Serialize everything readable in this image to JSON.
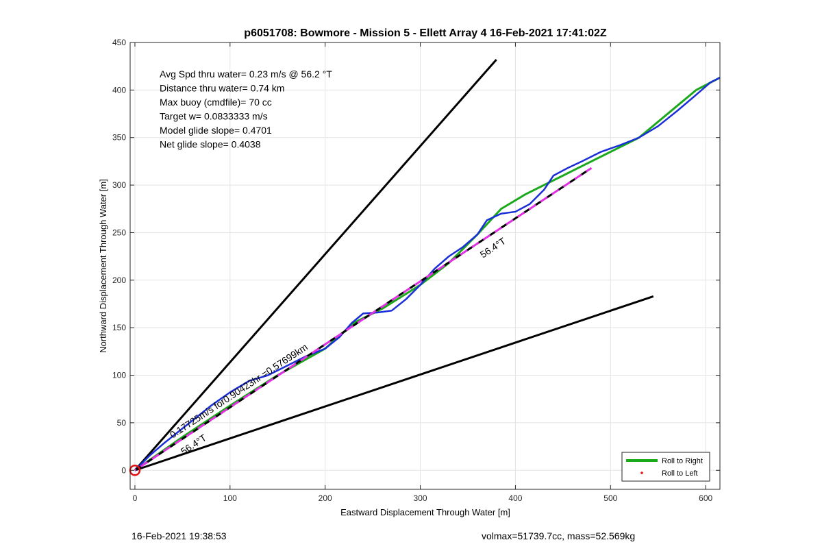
{
  "chart_data": {
    "type": "line",
    "title": "p6051708: Bowmore - Mission 5 - Ellett Array 4 16-Feb-2021 17:41:02Z",
    "xlabel": "Eastward Displacement Through Water [m]",
    "ylabel": "Northward Displacement Through Water [m]",
    "xlim": [
      -5,
      615
    ],
    "ylim": [
      -20,
      450
    ],
    "xticks": [
      "0",
      "100",
      "200",
      "300",
      "400",
      "500",
      "600"
    ],
    "yticks": [
      "0",
      "50",
      "100",
      "150",
      "200",
      "250",
      "300",
      "350",
      "400",
      "450"
    ],
    "grid": true,
    "legend_position": "bottom-right",
    "info_lines": [
      "Avg Spd thru water=  0.23 m/s @  56.2 °T",
      "Distance thru water=  0.74 km",
      "Max buoy (cmdfile)= 70 cc",
      "Target w= 0.0833333 m/s",
      "Model glide slope= 0.4701",
      "Net glide slope= 0.4038"
    ],
    "annotations": {
      "current_label": "0.17725m/s for0.90423hr =0.57699km",
      "heading_label_1": "56.4°T",
      "heading_label_2": "56.4°T"
    },
    "legend": [
      {
        "label": "Roll to Right",
        "color": "#1ca81c"
      },
      {
        "label": "Roll to Left",
        "color": "#e01010"
      }
    ],
    "cone_lines": [
      {
        "x": [
          0,
          380
        ],
        "y": [
          0,
          432
        ]
      },
      {
        "x": [
          0,
          545
        ],
        "y": [
          0,
          183
        ]
      }
    ],
    "heading_line": {
      "x": [
        0,
        480
      ],
      "y": [
        0,
        318
      ]
    },
    "series": [
      {
        "name": "Roll to Right",
        "color": "#1ca81c",
        "x": [
          0,
          20,
          50,
          100,
          150,
          200,
          230,
          260,
          300,
          330,
          360,
          385,
          410,
          440,
          470,
          500,
          530,
          560,
          590,
          615
        ],
        "y": [
          0,
          14,
          35,
          68,
          100,
          128,
          155,
          170,
          195,
          218,
          248,
          275,
          290,
          305,
          320,
          335,
          350,
          375,
          400,
          413
        ]
      },
      {
        "color": "#1a2ed8",
        "x": [
          0,
          15,
          30,
          45,
          60,
          80,
          100,
          120,
          140,
          160,
          180,
          200,
          215,
          228,
          240,
          255,
          270,
          285,
          300,
          315,
          330,
          345,
          360,
          370,
          385,
          400,
          415,
          430,
          440,
          455,
          470,
          490,
          510,
          530,
          550,
          570,
          590,
          605,
          615
        ],
        "y": [
          0,
          15,
          28,
          40,
          52,
          68,
          82,
          94,
          100,
          110,
          120,
          128,
          140,
          155,
          165,
          166,
          168,
          180,
          195,
          212,
          225,
          235,
          248,
          263,
          270,
          272,
          280,
          295,
          310,
          318,
          325,
          335,
          342,
          350,
          362,
          378,
          395,
          408,
          413
        ]
      },
      {
        "color": "#e030e0",
        "x": [
          0,
          480
        ],
        "y": [
          0,
          318
        ]
      }
    ],
    "start_marker": {
      "x": 0,
      "y": 0,
      "color": "#e01010"
    }
  },
  "footer": {
    "timestamp": "16-Feb-2021 19:38:53",
    "stats": "volmax=51739.7cc, mass=52.569kg"
  }
}
